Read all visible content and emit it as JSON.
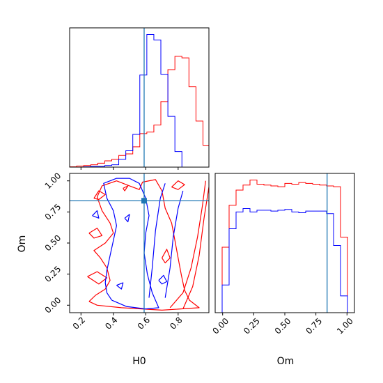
{
  "chart_data": {
    "type": "corner",
    "parameters": [
      "H0",
      "Om"
    ],
    "truth": {
      "H0": 0.59,
      "Om": 0.84
    },
    "colors": {
      "series_a": "#ff0000",
      "series_b": "#0000ff",
      "truth": "#1f77b4"
    },
    "axes": {
      "H0": {
        "xlim": [
          0.13,
          0.99
        ],
        "ticks": [
          0.2,
          0.4,
          0.6,
          0.8
        ],
        "tick_labels": [
          "0.2",
          "0.4",
          "0.6",
          "0.8"
        ],
        "label": "H0"
      },
      "Om": {
        "lim": [
          -0.06,
          1.06
        ],
        "ticks": [
          0.0,
          0.25,
          0.5,
          0.75,
          1.0
        ],
        "tick_labels": [
          "0.00",
          "0.25",
          "0.50",
          "0.75",
          "1.00"
        ],
        "label": "Om"
      }
    },
    "hist_H0": {
      "bin_edges": [
        0.13,
        0.1733,
        0.2167,
        0.26,
        0.3033,
        0.3467,
        0.39,
        0.4333,
        0.4767,
        0.52,
        0.5633,
        0.6067,
        0.65,
        0.6933,
        0.7367,
        0.78,
        0.8233,
        0.8667,
        0.91,
        0.9533,
        0.99
      ],
      "series": [
        {
          "color": "red",
          "values": [
            0.5,
            1.5,
            2,
            3,
            5,
            8,
            10,
            15,
            17,
            26,
            43,
            45,
            54,
            84,
            125,
            142,
            140,
            103,
            59,
            28
          ]
        },
        {
          "color": "blue",
          "values": [
            0,
            0,
            0.5,
            1,
            1,
            2,
            3,
            10,
            21,
            42,
            118,
            170,
            163,
            119,
            65,
            20,
            0,
            0,
            0,
            0
          ]
        }
      ]
    },
    "hist_Om": {
      "bin_edges": [
        -0.06,
        -0.004,
        0.052,
        0.108,
        0.164,
        0.22,
        0.276,
        0.332,
        0.388,
        0.444,
        0.5,
        0.556,
        0.612,
        0.668,
        0.724,
        0.78,
        0.836,
        0.892,
        0.948,
        1.004,
        1.06
      ],
      "series": [
        {
          "color": "red",
          "values": [
            0,
            78,
            128,
            146,
            152,
            158,
            153,
            152,
            151,
            150,
            154,
            153,
            155,
            154,
            153,
            152,
            151,
            150,
            90,
            0
          ]
        },
        {
          "color": "blue",
          "values": [
            0,
            33,
            100,
            120,
            124,
            120,
            122,
            122,
            121,
            122,
            123,
            120,
            119,
            121,
            121,
            121,
            118,
            80,
            20,
            0
          ]
        }
      ]
    },
    "contours": [
      {
        "color": "red",
        "paths": [
          [
            [
              0.25,
              0.03
            ],
            [
              0.29,
              0.08
            ],
            [
              0.35,
              0.13
            ],
            [
              0.38,
              0.2
            ],
            [
              0.36,
              0.3
            ],
            [
              0.32,
              0.38
            ],
            [
              0.28,
              0.44
            ],
            [
              0.35,
              0.5
            ],
            [
              0.4,
              0.58
            ],
            [
              0.38,
              0.66
            ],
            [
              0.33,
              0.76
            ],
            [
              0.3,
              0.87
            ],
            [
              0.33,
              0.96
            ],
            [
              0.42,
              1.0
            ],
            [
              0.5,
              0.96
            ],
            [
              0.56,
              0.93
            ],
            [
              0.58,
              0.99
            ],
            [
              0.66,
              1.01
            ],
            [
              0.7,
              0.92
            ],
            [
              0.72,
              0.78
            ],
            [
              0.76,
              0.66
            ],
            [
              0.78,
              0.52
            ],
            [
              0.8,
              0.38
            ],
            [
              0.82,
              0.24
            ],
            [
              0.84,
              0.12
            ],
            [
              0.87,
              0.04
            ],
            [
              0.93,
              -0.02
            ],
            [
              0.7,
              -0.04
            ],
            [
              0.45,
              -0.02
            ],
            [
              0.3,
              0.0
            ],
            [
              0.25,
              0.03
            ]
          ],
          [
            [
              0.75,
              -0.02
            ],
            [
              0.83,
              0.1
            ],
            [
              0.88,
              0.3
            ],
            [
              0.92,
              0.55
            ],
            [
              0.95,
              0.8
            ],
            [
              0.97,
              1.0
            ]
          ],
          [
            [
              0.83,
              -0.03
            ],
            [
              0.89,
              0.15
            ],
            [
              0.93,
              0.4
            ],
            [
              0.96,
              0.7
            ],
            [
              0.99,
              0.95
            ]
          ],
          [
            [
              0.24,
              0.23
            ],
            [
              0.3,
              0.27
            ],
            [
              0.36,
              0.22
            ],
            [
              0.31,
              0.17
            ],
            [
              0.24,
              0.23
            ]
          ],
          [
            [
              0.25,
              0.58
            ],
            [
              0.3,
              0.62
            ],
            [
              0.33,
              0.56
            ],
            [
              0.28,
              0.54
            ],
            [
              0.25,
              0.58
            ]
          ],
          [
            [
              0.28,
              0.86
            ],
            [
              0.31,
              0.92
            ],
            [
              0.35,
              0.89
            ],
            [
              0.31,
              0.85
            ],
            [
              0.28,
              0.86
            ]
          ],
          [
            [
              0.46,
              0.94
            ],
            [
              0.49,
              0.96
            ],
            [
              0.47,
              0.92
            ],
            [
              0.46,
              0.94
            ]
          ],
          [
            [
              0.7,
              0.38
            ],
            [
              0.73,
              0.45
            ],
            [
              0.75,
              0.38
            ],
            [
              0.72,
              0.34
            ],
            [
              0.7,
              0.38
            ]
          ],
          [
            [
              0.76,
              0.95
            ],
            [
              0.8,
              1.0
            ],
            [
              0.84,
              0.97
            ],
            [
              0.8,
              0.93
            ],
            [
              0.76,
              0.95
            ]
          ]
        ]
      },
      {
        "color": "blue",
        "paths": [
          [
            [
              0.39,
              0.04
            ],
            [
              0.48,
              -0.01
            ],
            [
              0.6,
              -0.03
            ],
            [
              0.68,
              -0.02
            ],
            [
              0.64,
              0.1
            ],
            [
              0.61,
              0.25
            ],
            [
              0.59,
              0.42
            ],
            [
              0.6,
              0.58
            ],
            [
              0.62,
              0.72
            ],
            [
              0.6,
              0.86
            ],
            [
              0.56,
              0.98
            ],
            [
              0.5,
              1.02
            ],
            [
              0.42,
              1.02
            ],
            [
              0.34,
              0.98
            ],
            [
              0.36,
              0.86
            ],
            [
              0.4,
              0.76
            ],
            [
              0.42,
              0.64
            ],
            [
              0.4,
              0.52
            ],
            [
              0.38,
              0.4
            ],
            [
              0.36,
              0.28
            ],
            [
              0.35,
              0.18
            ],
            [
              0.36,
              0.1
            ],
            [
              0.39,
              0.04
            ]
          ],
          [
            [
              0.62,
              0.06
            ],
            [
              0.64,
              0.3
            ],
            [
              0.66,
              0.6
            ],
            [
              0.69,
              0.86
            ],
            [
              0.72,
              0.98
            ]
          ],
          [
            [
              0.72,
              0.06
            ],
            [
              0.75,
              0.3
            ],
            [
              0.77,
              0.55
            ],
            [
              0.8,
              0.78
            ],
            [
              0.83,
              0.92
            ]
          ],
          [
            [
              0.68,
              0.2
            ],
            [
              0.71,
              0.24
            ],
            [
              0.73,
              0.19
            ],
            [
              0.7,
              0.17
            ],
            [
              0.68,
              0.2
            ]
          ],
          [
            [
              0.42,
              0.16
            ],
            [
              0.46,
              0.18
            ],
            [
              0.45,
              0.13
            ],
            [
              0.42,
              0.16
            ]
          ],
          [
            [
              0.27,
              0.72
            ],
            [
              0.3,
              0.76
            ],
            [
              0.31,
              0.7
            ],
            [
              0.27,
              0.72
            ]
          ],
          [
            [
              0.47,
              0.7
            ],
            [
              0.5,
              0.73
            ],
            [
              0.49,
              0.67
            ],
            [
              0.47,
              0.7
            ]
          ]
        ]
      }
    ]
  }
}
